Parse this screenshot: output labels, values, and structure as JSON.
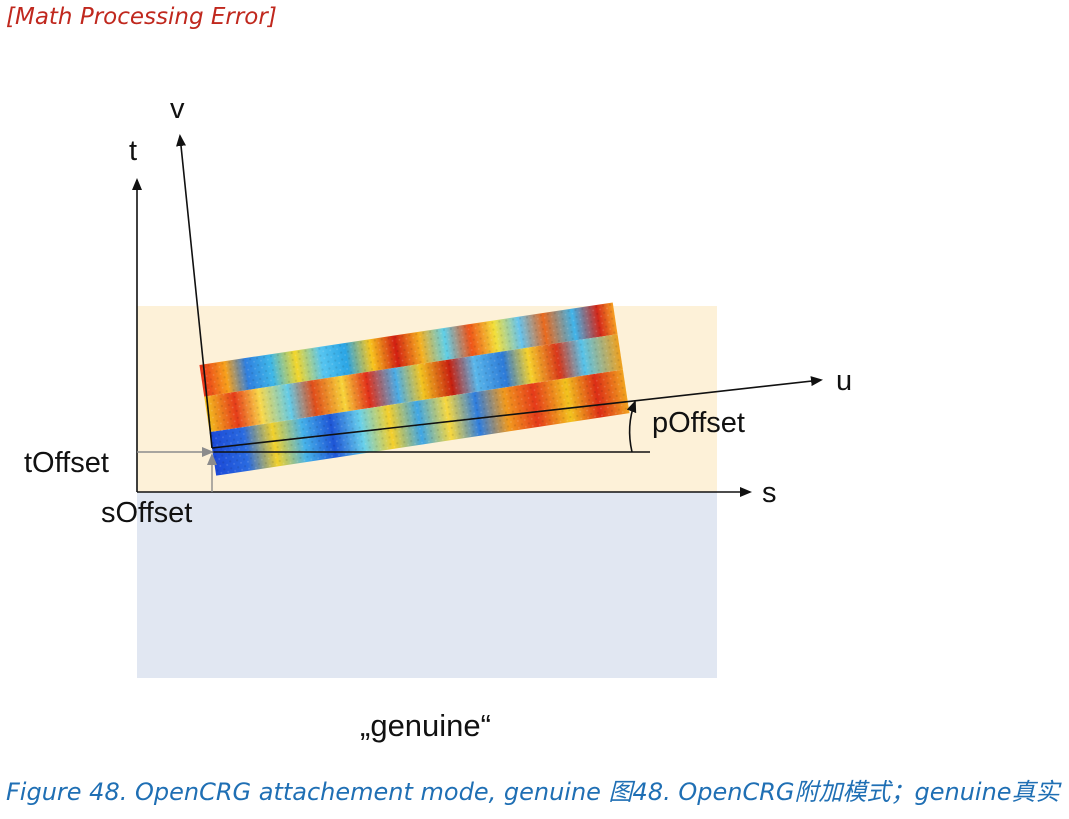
{
  "error_text": "[Math Processing Error]",
  "diagram": {
    "labels": {
      "v": "v",
      "t": "t",
      "u": "u",
      "s": "s",
      "p_offset": "pOffset",
      "t_offset": "tOffset",
      "s_offset": "sOffset"
    },
    "mode_label": "„genuine“",
    "colors": {
      "upper_region": "#fdf1d8",
      "lower_region": "#e1e7f2",
      "axis": "#111111",
      "offset_arrow": "#8c8c8c"
    }
  },
  "caption": "Figure 48. OpenCRG attachement mode, genuine 图48. OpenCRG附加模式；genuine真实"
}
